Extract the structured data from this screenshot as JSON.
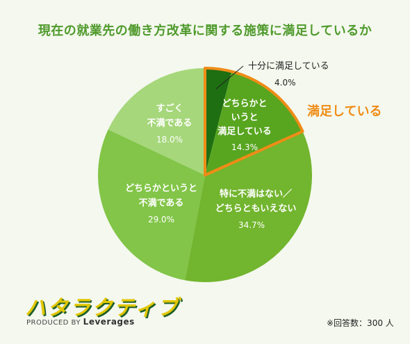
{
  "logo": {
    "mark": "ハタラクティブ",
    "sub": "PRODUCED BY",
    "brand": "Leverages"
  },
  "footnote": "※回答数：300 人",
  "annotation": "満足している",
  "colors": {
    "s0": "#1e6e12",
    "s1": "#58a520",
    "s2": "#72b52e",
    "s3": "#82c548",
    "s4": "#a6d77b",
    "highlight": "#ef8c17"
  },
  "chart_data": {
    "type": "pie",
    "title": "現在の就業先の働き方改革に関する施策に満足しているか",
    "slices": [
      {
        "label": "十分に満足している",
        "value": 4.0,
        "pct_label": "4.0%"
      },
      {
        "label": "どちらかというと満足している",
        "value": 14.3,
        "pct_label": "14.3%"
      },
      {
        "label": "特に不満はない／どちらともいえない",
        "value": 34.7,
        "pct_label": "34.7%"
      },
      {
        "label": "どちらかというと不満である",
        "value": 29.0,
        "pct_label": "29.0%"
      },
      {
        "label": "すごく不満である",
        "value": 18.0,
        "pct_label": "18.0%"
      }
    ],
    "total_respondents": 300
  }
}
